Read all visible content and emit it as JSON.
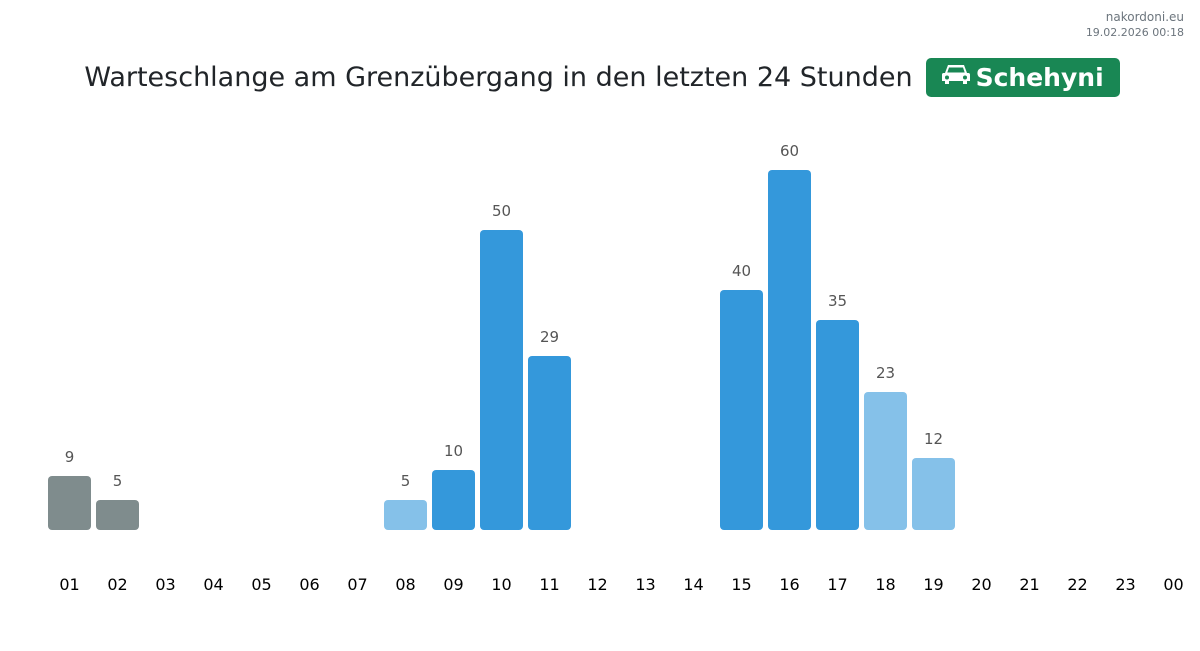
{
  "source": {
    "site": "nakordoni.eu",
    "timestamp": "19.02.2026 00:18"
  },
  "header": {
    "title": "Warteschlange am Grenzübergang in den letzten 24 Stunden",
    "crossing": "Schehyni",
    "crossing_icon": "car-icon"
  },
  "colors": {
    "grey": "#7f8c8d",
    "blue": "#3498db",
    "light": "#85c1e9",
    "badge": "#198754"
  },
  "chart_data": {
    "type": "bar",
    "title": "Warteschlange am Grenzübergang in den letzten 24 Stunden",
    "categories": [
      "01",
      "02",
      "03",
      "04",
      "05",
      "06",
      "07",
      "08",
      "09",
      "10",
      "11",
      "12",
      "13",
      "14",
      "15",
      "16",
      "17",
      "18",
      "19",
      "20",
      "21",
      "22",
      "23",
      "00"
    ],
    "values": [
      9,
      5,
      null,
      null,
      null,
      null,
      null,
      5,
      10,
      50,
      29,
      null,
      null,
      null,
      40,
      60,
      35,
      23,
      12,
      null,
      null,
      null,
      null,
      null
    ],
    "bar_colors": [
      "grey",
      "grey",
      null,
      null,
      null,
      null,
      null,
      "light",
      "blue",
      "blue",
      "blue",
      null,
      null,
      null,
      "blue",
      "blue",
      "blue",
      "light",
      "light",
      null,
      null,
      null,
      null,
      null
    ],
    "ylim": [
      0,
      60
    ],
    "grid": false
  }
}
